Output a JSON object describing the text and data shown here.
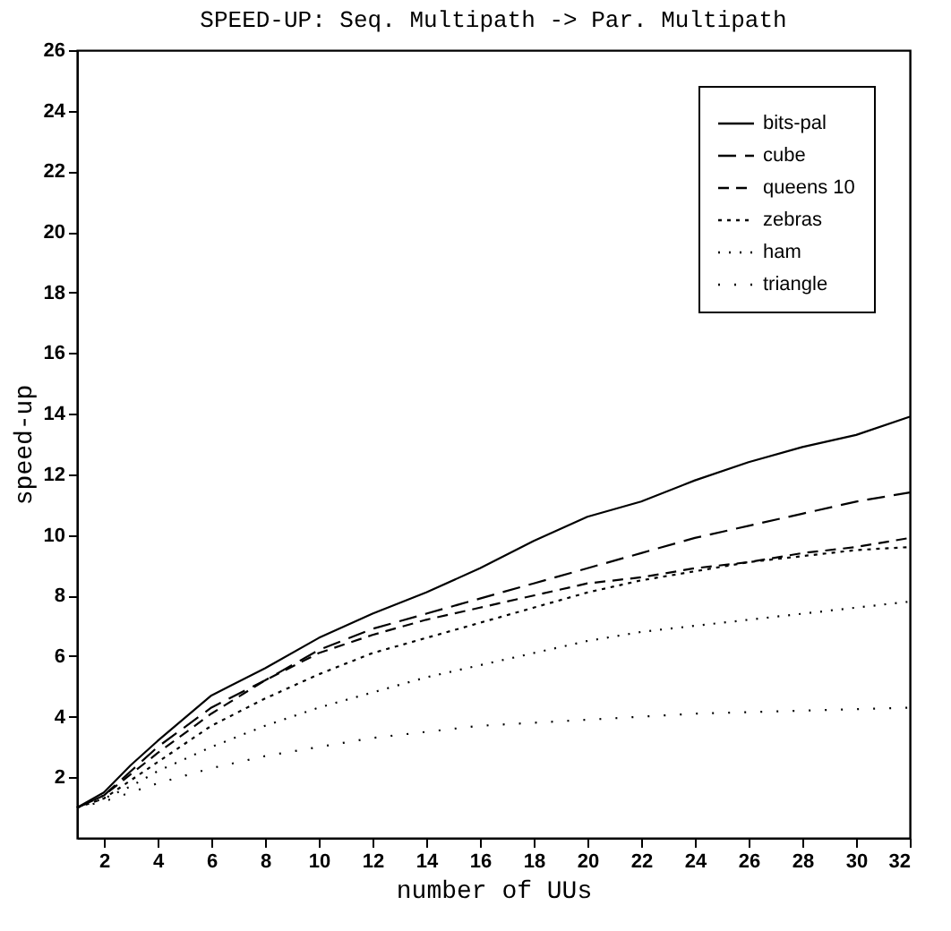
{
  "chart_data": {
    "type": "line",
    "title": "SPEED-UP: Seq. Multipath -> Par. Multipath",
    "xlabel": "number of UUs",
    "ylabel": "speed-up",
    "xlim": [
      1,
      32
    ],
    "xticks": [
      2,
      4,
      6,
      8,
      10,
      12,
      14,
      16,
      18,
      20,
      22,
      24,
      26,
      28,
      30,
      32
    ],
    "ylim": [
      0,
      26
    ],
    "yticks": [
      2,
      4,
      6,
      8,
      10,
      12,
      14,
      16,
      18,
      20,
      22,
      24,
      26
    ],
    "x": [
      1,
      2,
      3,
      4,
      6,
      8,
      10,
      12,
      14,
      16,
      18,
      20,
      22,
      24,
      26,
      28,
      30,
      32
    ],
    "grid": false,
    "legend": "top right",
    "marker": "none",
    "series": [
      {
        "name": "bits-pal",
        "color": "#000000",
        "line_style": "solid",
        "values": [
          1,
          1.5,
          2.4,
          3.2,
          4.7,
          5.6,
          6.6,
          7.4,
          8.1,
          8.9,
          9.8,
          10.6,
          11.1,
          11.8,
          12.4,
          12.9,
          13.3,
          13.9
        ]
      },
      {
        "name": "cube",
        "color": "#000000",
        "line_style": "dashed",
        "values": [
          1,
          1.4,
          2.2,
          3.0,
          4.3,
          5.2,
          6.2,
          6.9,
          7.4,
          7.9,
          8.4,
          8.9,
          9.4,
          9.9,
          10.3,
          10.7,
          11.1,
          11.4
        ]
      },
      {
        "name": "queens 10",
        "color": "#000000",
        "line_style": "dashed",
        "values": [
          1,
          1.4,
          2.1,
          2.8,
          4.1,
          5.2,
          6.1,
          6.7,
          7.2,
          7.6,
          8.0,
          8.4,
          8.6,
          8.9,
          9.1,
          9.4,
          9.6,
          9.9
        ]
      },
      {
        "name": "zebras",
        "color": "#000000",
        "line_style": "dotted",
        "values": [
          1,
          1.3,
          1.9,
          2.5,
          3.7,
          4.6,
          5.4,
          6.1,
          6.6,
          7.1,
          7.6,
          8.1,
          8.5,
          8.8,
          9.1,
          9.3,
          9.5,
          9.6
        ]
      },
      {
        "name": "ham",
        "color": "#000000",
        "line_style": "dotted",
        "values": [
          1,
          1.3,
          1.7,
          2.2,
          3.0,
          3.7,
          4.3,
          4.8,
          5.3,
          5.7,
          6.1,
          6.5,
          6.8,
          7.0,
          7.2,
          7.4,
          7.6,
          7.8
        ]
      },
      {
        "name": "triangle",
        "color": "#000000",
        "line_style": "dotted",
        "values": [
          1,
          1.2,
          1.5,
          1.8,
          2.3,
          2.7,
          3.0,
          3.3,
          3.5,
          3.7,
          3.8,
          3.9,
          4.0,
          4.1,
          4.15,
          4.2,
          4.25,
          4.3
        ]
      }
    ]
  }
}
